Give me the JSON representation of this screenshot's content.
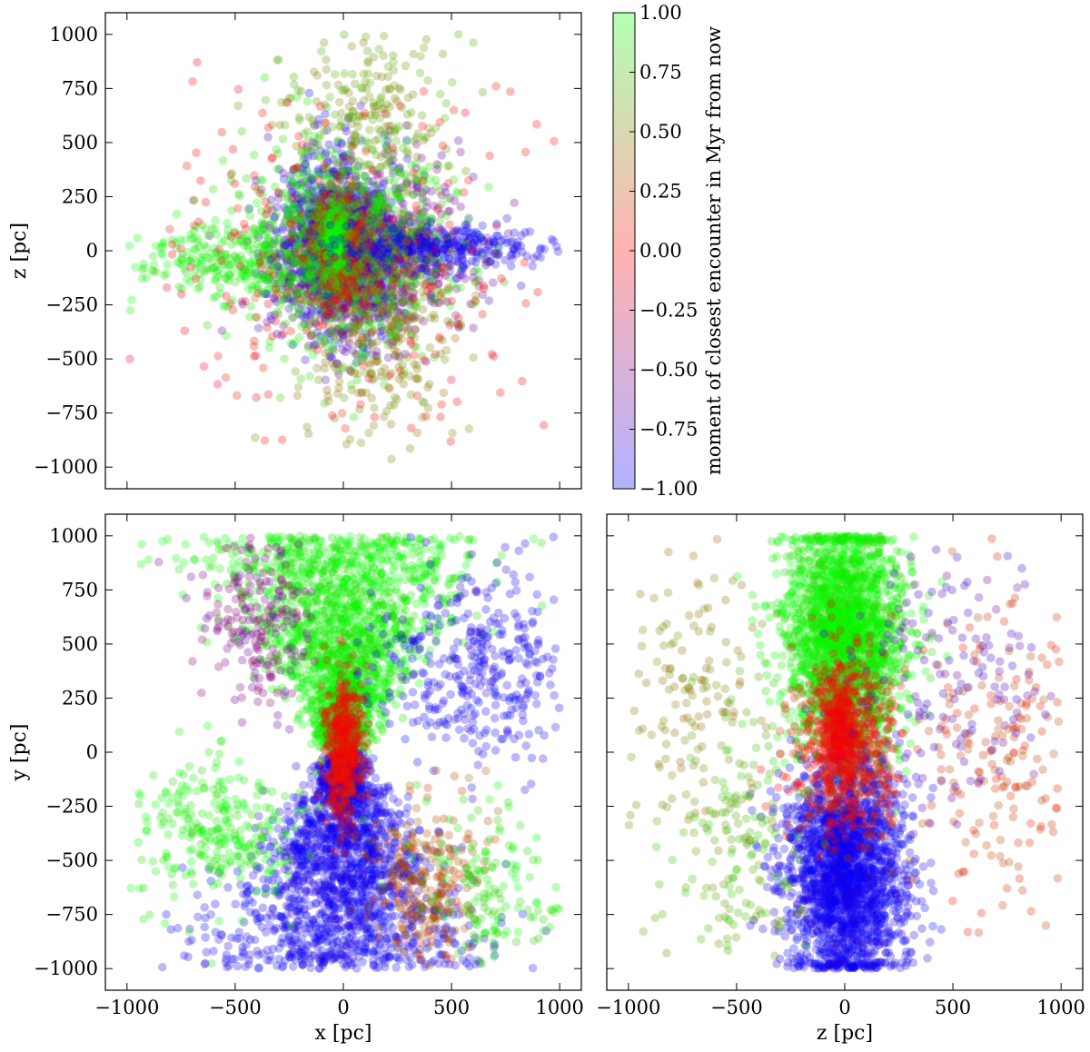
{
  "figure": {
    "title": ""
  },
  "chart_data": [
    {
      "id": "xz",
      "type": "scatter",
      "title": "",
      "xlabel": "",
      "ylabel": "z [pc]",
      "xlim": [
        -1100,
        1100
      ],
      "ylim": [
        -1100,
        1100
      ],
      "xticks": [
        -1000,
        -500,
        0,
        500,
        1000
      ],
      "yticks": [
        -1000,
        -750,
        -500,
        -250,
        0,
        250,
        500,
        750,
        1000
      ],
      "x_tick_labels": false,
      "y_tick_labels": true,
      "grid": false,
      "color_by": "moment of closest encounter in Myr from now",
      "clusters": [
        {
          "x": -30,
          "y": 30,
          "sx": 130,
          "sy": 200,
          "n": 1200,
          "t": -0.9
        },
        {
          "x": 120,
          "y": -20,
          "sx": 230,
          "sy": 190,
          "n": 900,
          "t": -0.6
        },
        {
          "x": 0,
          "y": 20,
          "sx": 240,
          "sy": 230,
          "n": 900,
          "t": 0.9
        },
        {
          "x": -20,
          "y": 0,
          "sx": 55,
          "sy": 130,
          "n": 320,
          "t": 0.1
        },
        {
          "x": -40,
          "y": 40,
          "sx": 30,
          "sy": 90,
          "n": 220,
          "t": 1.0
        },
        {
          "x": -560,
          "y": -40,
          "sx": 240,
          "sy": 80,
          "n": 220,
          "t": 0.95
        },
        {
          "x": 420,
          "y": 10,
          "sx": 260,
          "sy": 55,
          "n": 340,
          "t": -0.95
        },
        {
          "x": 150,
          "y": -350,
          "sx": 200,
          "sy": 280,
          "n": 320,
          "t": 0.5
        },
        {
          "x": 100,
          "y": 650,
          "sx": 200,
          "sy": 200,
          "n": 220,
          "t": 0.6
        },
        {
          "x": 0,
          "y": 0,
          "sx": 480,
          "sy": 430,
          "n": 240,
          "t": 0.0
        }
      ]
    },
    {
      "id": "xy",
      "type": "scatter",
      "title": "",
      "xlabel": "x [pc]",
      "ylabel": "y [pc]",
      "xlim": [
        -1100,
        1100
      ],
      "ylim": [
        -1100,
        1100
      ],
      "xticks": [
        -1000,
        -500,
        0,
        500,
        1000
      ],
      "yticks": [
        -1000,
        -750,
        -500,
        -250,
        0,
        250,
        500,
        750,
        1000
      ],
      "x_tick_labels": true,
      "y_tick_labels": true,
      "grid": false,
      "color_by": "moment of closest encounter in Myr from now",
      "clusters": [
        {
          "x": 0,
          "y": 500,
          "sx": 150,
          "sy": 280,
          "n": 2000,
          "t": 0.95,
          "shape": "cone_up"
        },
        {
          "x": 0,
          "y": -500,
          "sx": 150,
          "sy": 280,
          "n": 2000,
          "t": -0.95,
          "shape": "cone_down"
        },
        {
          "x": 0,
          "y": 0,
          "sx": 45,
          "sy": 170,
          "n": 500,
          "t": 0.05
        },
        {
          "x": -600,
          "y": -380,
          "sx": 230,
          "sy": 170,
          "n": 280,
          "t": 0.95
        },
        {
          "x": 600,
          "y": 380,
          "sx": 230,
          "sy": 230,
          "n": 380,
          "t": -0.95
        },
        {
          "x": -380,
          "y": 600,
          "sx": 130,
          "sy": 200,
          "n": 200,
          "t": -0.5
        },
        {
          "x": 380,
          "y": -600,
          "sx": 130,
          "sy": 200,
          "n": 260,
          "t": 0.3
        },
        {
          "x": 700,
          "y": -650,
          "sx": 180,
          "sy": 200,
          "n": 160,
          "t": 0.9
        }
      ]
    },
    {
      "id": "zy",
      "type": "scatter",
      "title": "",
      "xlabel": "z [pc]",
      "ylabel": "",
      "xlim": [
        -1100,
        1100
      ],
      "ylim": [
        -1100,
        1100
      ],
      "xticks": [
        -1000,
        -500,
        0,
        500,
        1000
      ],
      "yticks": [
        -1000,
        -750,
        -500,
        -250,
        0,
        250,
        500,
        750,
        1000
      ],
      "x_tick_labels": true,
      "y_tick_labels": false,
      "grid": false,
      "color_by": "moment of closest encounter in Myr from now",
      "clusters": [
        {
          "x": 0,
          "y": 550,
          "sx": 140,
          "sy": 260,
          "n": 2200,
          "t": 0.95,
          "ymax": 1000
        },
        {
          "x": 0,
          "y": -550,
          "sx": 140,
          "sy": 260,
          "n": 2200,
          "t": -0.95,
          "ymin": -1000
        },
        {
          "x": 0,
          "y": 30,
          "sx": 110,
          "sy": 200,
          "n": 700,
          "t": 0.1
        },
        {
          "x": -20,
          "y": 80,
          "sx": 35,
          "sy": 120,
          "n": 250,
          "t": 0.0
        },
        {
          "x": -700,
          "y": 300,
          "sx": 200,
          "sy": 380,
          "n": 150,
          "t": 0.5
        },
        {
          "x": 750,
          "y": 0,
          "sx": 200,
          "sy": 420,
          "n": 200,
          "t": 0.2
        },
        {
          "x": -450,
          "y": -400,
          "sx": 160,
          "sy": 380,
          "n": 170,
          "t": 0.7
        },
        {
          "x": 500,
          "y": 350,
          "sx": 200,
          "sy": 300,
          "n": 140,
          "t": -0.7
        }
      ]
    }
  ],
  "colorbar": {
    "label": "moment of closest encounter in Myr from now",
    "min": -1.0,
    "max": 1.0,
    "ticks": [
      -1.0,
      -0.75,
      -0.5,
      -0.25,
      0.0,
      0.25,
      0.5,
      0.75,
      1.0
    ],
    "tick_labels": [
      "−1.00",
      "−0.75",
      "−0.50",
      "−0.25",
      "0.00",
      "0.25",
      "0.50",
      "0.75",
      "1.00"
    ],
    "colors": [
      "#0000ff",
      "#ff0000",
      "#00ff00"
    ]
  },
  "tick_labels": {
    "axis": [
      "−1000",
      "−750",
      "−500",
      "−250",
      "0",
      "250",
      "500",
      "750",
      "1000"
    ],
    "x": [
      "−1000",
      "−500",
      "0",
      "500",
      "1000"
    ]
  }
}
